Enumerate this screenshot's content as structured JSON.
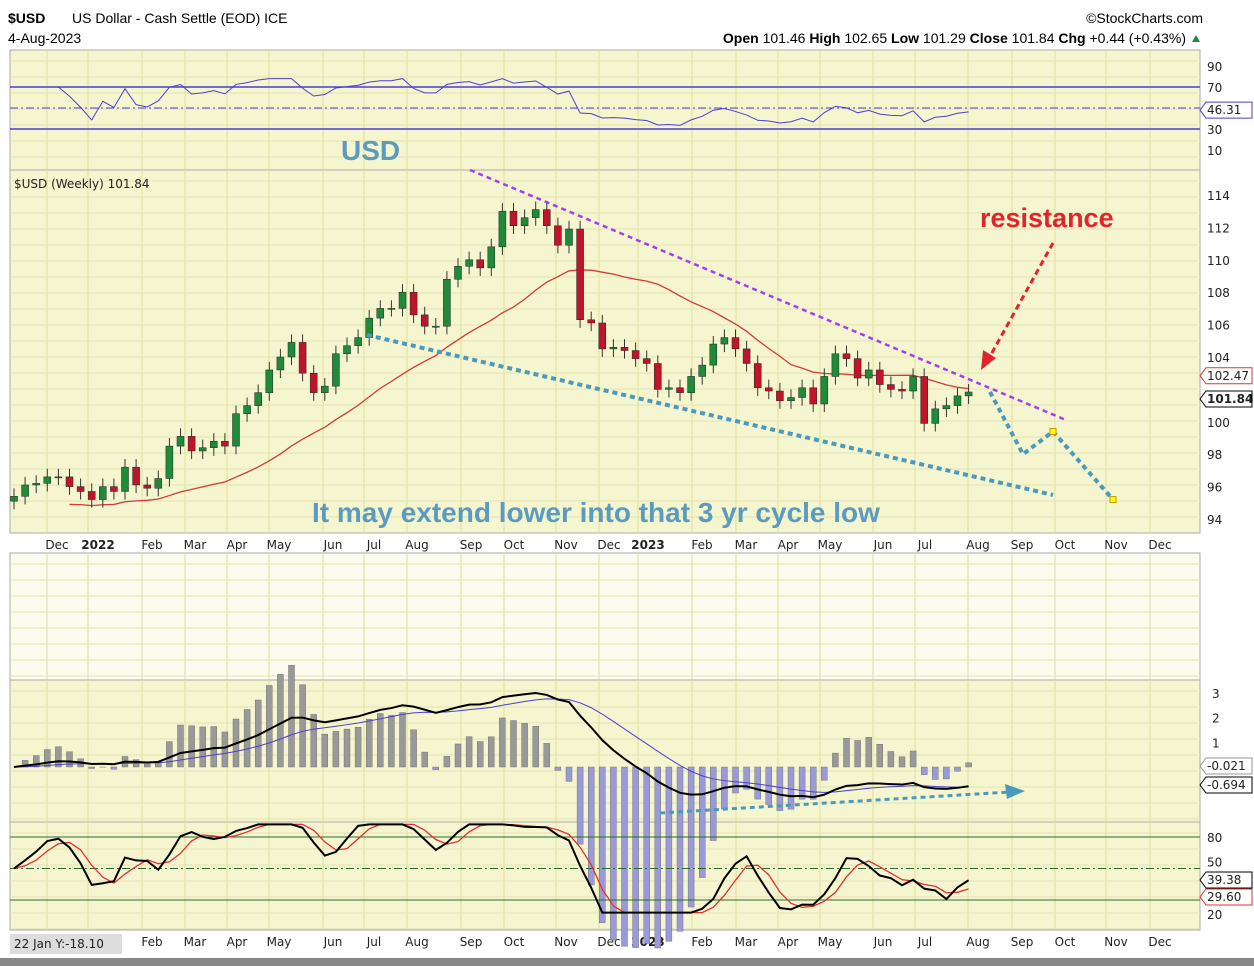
{
  "header": {
    "symbol": "$USD",
    "name": "US Dollar - Cash Settle (EOD) ICE",
    "date": "4-Aug-2023",
    "brand": "©StockCharts.com",
    "open_label": "Open",
    "open": "101.46",
    "high_label": "High",
    "high": "102.65",
    "low_label": "Low",
    "low": "101.29",
    "close_label": "Close",
    "close": "101.84",
    "chg_label": "Chg",
    "chg": "+0.44 (+0.43%)"
  },
  "annotations": {
    "usd": "USD",
    "resistance": "resistance",
    "cycle": "It may extend lower into that 3 yr cycle low"
  },
  "colors": {
    "panel": "#f5f5d0",
    "up": "#1f8a3a",
    "down": "#c0142b",
    "ma": "#d23a3a",
    "rsi": "#4a3fd0",
    "trend_purple": "#a040f0",
    "trend_blue": "#4a9ac0"
  },
  "chart_data": {
    "type": "candlestick",
    "title": "$USD (Weekly) 101.84",
    "legend": "$USD (Weekly) 101.84",
    "ylim": [
      93,
      115.5
    ],
    "price_ticks": [
      "114",
      "112",
      "110",
      "108",
      "106",
      "104",
      "100",
      "98",
      "96",
      "94"
    ],
    "price_tags": {
      "ma": "102.47",
      "last": "101.84"
    },
    "rsi_ticks": [
      "90",
      "70",
      "30",
      "10"
    ],
    "rsi_tag": "46.31",
    "macd_ticks": [
      "3",
      "2",
      "1"
    ],
    "macd_tags": [
      "-0.021",
      "-0.694"
    ],
    "stoch_ticks": [
      "80",
      "50",
      "20"
    ],
    "stoch_tags": [
      "39.38",
      "29.60"
    ],
    "bottom_left": "22 Jan Y:-18.10",
    "months": [
      "Dec",
      "2022",
      "Feb",
      "Mar",
      "Apr",
      "May",
      "Jun",
      "Jul",
      "Aug",
      "Sep",
      "Oct",
      "Nov",
      "Dec",
      "2023",
      "Feb",
      "Mar",
      "Apr",
      "May",
      "Jun",
      "Jul",
      "Aug",
      "Sep",
      "Oct",
      "Nov",
      "Dec"
    ],
    "weekly_close": [
      95.4,
      96.1,
      96.2,
      96.6,
      96.6,
      96.0,
      95.7,
      95.2,
      96.0,
      95.7,
      97.2,
      96.1,
      95.9,
      96.5,
      98.5,
      99.1,
      98.2,
      98.4,
      98.8,
      98.5,
      100.5,
      101.0,
      101.8,
      103.2,
      104.0,
      104.9,
      103.0,
      101.8,
      102.2,
      104.2,
      104.7,
      105.2,
      106.4,
      107.0,
      107.0,
      108.0,
      106.6,
      105.9,
      105.9,
      108.8,
      109.6,
      110.0,
      109.5,
      110.8,
      113.0,
      112.1,
      112.6,
      113.1,
      112.1,
      110.9,
      111.9,
      106.3,
      106.1,
      104.5,
      104.6,
      104.4,
      103.9,
      103.6,
      102.0,
      102.1,
      101.8,
      102.8,
      103.5,
      104.8,
      105.2,
      104.5,
      103.6,
      102.1,
      101.9,
      101.3,
      101.5,
      102.1,
      101.1,
      102.8,
      104.2,
      103.9,
      102.7,
      103.2,
      102.3,
      102.0,
      101.9,
      102.8,
      99.9,
      100.8,
      101.0,
      101.6,
      101.84
    ],
    "projection": [
      101.84,
      98.0,
      99.4,
      95.2
    ]
  }
}
